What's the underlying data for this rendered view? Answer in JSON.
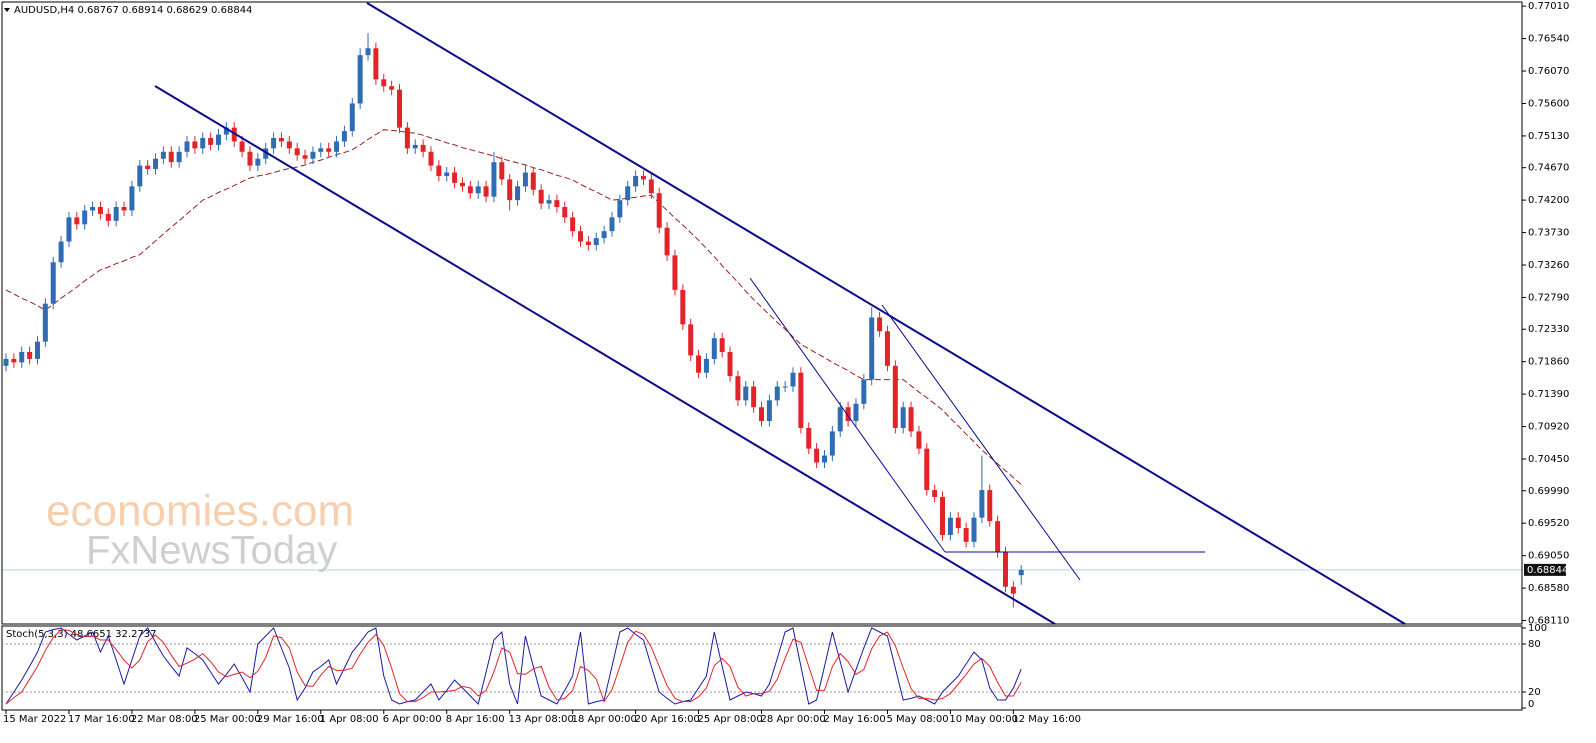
{
  "chart_data": [
    {
      "type": "candlestick",
      "title": "AUDUSD,H4  0.68767 0.68914 0.68629 0.68844",
      "watermark": [
        "economies.com",
        "FxNewsToday"
      ],
      "categories": [
        "15 Mar 2022",
        null,
        null,
        null,
        null,
        null,
        null,
        null,
        "17 Mar 16:00",
        null,
        null,
        null,
        null,
        null,
        null,
        null,
        "22 Mar 08:00",
        null,
        null,
        null,
        null,
        null,
        null,
        null,
        "25 Mar 00:00",
        null,
        null,
        null,
        null,
        null,
        null,
        null,
        "29 Mar 16:00",
        null,
        null,
        null,
        null,
        null,
        null,
        null,
        "1 Apr 08:00",
        null,
        null,
        null,
        null,
        null,
        null,
        null,
        "6 Apr 00:00",
        null,
        null,
        null,
        null,
        null,
        null,
        null,
        "8 Apr 16:00",
        null,
        null,
        null,
        null,
        null,
        null,
        null,
        "13 Apr 08:00",
        null,
        null,
        null,
        null,
        null,
        null,
        null,
        "18 Apr 00:00",
        null,
        null,
        null,
        null,
        null,
        null,
        null,
        "20 Apr 16:00",
        null,
        null,
        null,
        null,
        null,
        null,
        null,
        "25 Apr 08:00",
        null,
        null,
        null,
        null,
        null,
        null,
        null,
        "28 Apr 00:00",
        null,
        null,
        null,
        null,
        null,
        null,
        null,
        "2 May 16:00",
        null,
        null,
        null,
        null,
        null,
        null,
        null,
        "5 May 08:00",
        null,
        null,
        null,
        null,
        null,
        null,
        null,
        "10 May 00:00",
        null,
        null,
        null,
        null,
        null,
        null,
        null,
        "12 May 16:00",
        null
      ],
      "open": [
        0.718,
        0.719,
        0.7185,
        0.72,
        0.719,
        0.7215,
        0.727,
        0.733,
        0.736,
        0.7395,
        0.7385,
        0.7405,
        0.741,
        0.74,
        0.739,
        0.741,
        0.7405,
        0.744,
        0.747,
        0.7465,
        0.748,
        0.749,
        0.7475,
        0.749,
        0.7505,
        0.7495,
        0.751,
        0.75,
        0.7515,
        0.7525,
        0.7505,
        0.749,
        0.747,
        0.748,
        0.7495,
        0.751,
        0.7505,
        0.7495,
        0.7485,
        0.748,
        0.749,
        0.7495,
        0.749,
        0.7505,
        0.752,
        0.756,
        0.763,
        0.764,
        0.7595,
        0.7585,
        0.758,
        0.7525,
        0.7495,
        0.75,
        0.749,
        0.747,
        0.7455,
        0.746,
        0.7445,
        0.744,
        0.743,
        0.744,
        0.7425,
        0.7475,
        0.745,
        0.742,
        0.744,
        0.746,
        0.7435,
        0.7415,
        0.742,
        0.741,
        0.7395,
        0.7375,
        0.736,
        0.7355,
        0.7365,
        0.7375,
        0.7395,
        0.742,
        0.744,
        0.7455,
        0.745,
        0.743,
        0.738,
        0.734,
        0.729,
        0.724,
        0.7195,
        0.717,
        0.719,
        0.722,
        0.72,
        0.7165,
        0.713,
        0.715,
        0.712,
        0.71,
        0.713,
        0.715,
        0.715,
        0.717,
        0.709,
        0.706,
        0.704,
        0.705,
        0.7085,
        0.712,
        0.71,
        0.7125,
        0.716,
        0.725,
        0.723,
        0.718,
        0.709,
        0.712,
        0.7085,
        0.706,
        0.7,
        0.699,
        0.6935,
        0.696,
        0.6945,
        0.6925,
        0.696,
        0.7,
        0.6955,
        0.691,
        0.686,
        0.68767
      ],
      "high": [
        0.7198,
        0.7198,
        0.7208,
        0.7208,
        0.7223,
        0.7278,
        0.7338,
        0.7368,
        0.7403,
        0.7403,
        0.7413,
        0.7418,
        0.7418,
        0.7408,
        0.7418,
        0.7418,
        0.7448,
        0.7478,
        0.7478,
        0.7488,
        0.7498,
        0.7498,
        0.7498,
        0.7513,
        0.7513,
        0.7518,
        0.7518,
        0.7523,
        0.7533,
        0.7533,
        0.7513,
        0.7498,
        0.7488,
        0.7503,
        0.7518,
        0.7518,
        0.7513,
        0.7503,
        0.7493,
        0.7498,
        0.7503,
        0.7503,
        0.7513,
        0.7528,
        0.7568,
        0.764,
        0.7662,
        0.7648,
        0.7603,
        0.7593,
        0.7588,
        0.7533,
        0.7508,
        0.7508,
        0.7498,
        0.7478,
        0.7468,
        0.7468,
        0.7453,
        0.7448,
        0.7448,
        0.7448,
        0.749,
        0.7483,
        0.7458,
        0.7448,
        0.747,
        0.7468,
        0.7443,
        0.7428,
        0.7428,
        0.7418,
        0.7403,
        0.7383,
        0.7368,
        0.7373,
        0.7383,
        0.7403,
        0.7428,
        0.7448,
        0.7463,
        0.7463,
        0.7458,
        0.7438,
        0.7388,
        0.7348,
        0.7298,
        0.7248,
        0.7203,
        0.7198,
        0.7228,
        0.7228,
        0.7208,
        0.7173,
        0.7158,
        0.7158,
        0.7128,
        0.7138,
        0.7158,
        0.7158,
        0.7178,
        0.7178,
        0.7098,
        0.7068,
        0.7058,
        0.7093,
        0.7128,
        0.7128,
        0.7133,
        0.7168,
        0.7265,
        0.7258,
        0.7238,
        0.7188,
        0.7128,
        0.7128,
        0.7093,
        0.7068,
        0.7008,
        0.6998,
        0.6968,
        0.6968,
        0.6953,
        0.6968,
        0.705,
        0.7008,
        0.6963,
        0.6918,
        0.6868,
        0.68914
      ],
      "low": [
        0.7172,
        0.7177,
        0.7177,
        0.7182,
        0.7182,
        0.7207,
        0.7262,
        0.7322,
        0.7352,
        0.7377,
        0.7377,
        0.7397,
        0.7392,
        0.7382,
        0.7382,
        0.7397,
        0.7397,
        0.7432,
        0.7457,
        0.7457,
        0.7472,
        0.7467,
        0.7467,
        0.7482,
        0.7487,
        0.7487,
        0.7492,
        0.7492,
        0.7507,
        0.7497,
        0.7482,
        0.7462,
        0.7462,
        0.7472,
        0.7487,
        0.7497,
        0.7487,
        0.7477,
        0.7472,
        0.7472,
        0.7482,
        0.7482,
        0.7482,
        0.7497,
        0.7512,
        0.7552,
        0.7622,
        0.7587,
        0.7577,
        0.7572,
        0.7517,
        0.7487,
        0.7487,
        0.7482,
        0.7462,
        0.7447,
        0.7447,
        0.7437,
        0.7432,
        0.7422,
        0.7422,
        0.7417,
        0.7417,
        0.7442,
        0.7405,
        0.7412,
        0.7432,
        0.7427,
        0.7407,
        0.7407,
        0.7402,
        0.7387,
        0.7367,
        0.7352,
        0.7347,
        0.7347,
        0.7357,
        0.7367,
        0.7387,
        0.7412,
        0.7432,
        0.7442,
        0.7422,
        0.7372,
        0.7332,
        0.7282,
        0.7232,
        0.7187,
        0.7162,
        0.7162,
        0.7182,
        0.7192,
        0.7157,
        0.7122,
        0.7122,
        0.7112,
        0.7092,
        0.7092,
        0.7122,
        0.7142,
        0.7142,
        0.7082,
        0.7052,
        0.7032,
        0.7032,
        0.7042,
        0.7077,
        0.7092,
        0.7092,
        0.7117,
        0.7152,
        0.7222,
        0.7172,
        0.7082,
        0.7082,
        0.7077,
        0.7052,
        0.6992,
        0.6982,
        0.6927,
        0.6927,
        0.6937,
        0.6917,
        0.6917,
        0.6952,
        0.6947,
        0.6902,
        0.6852,
        0.683,
        0.68629
      ],
      "close": [
        0.719,
        0.7185,
        0.72,
        0.719,
        0.7215,
        0.727,
        0.733,
        0.736,
        0.7395,
        0.7385,
        0.7405,
        0.741,
        0.74,
        0.739,
        0.741,
        0.7405,
        0.744,
        0.747,
        0.7465,
        0.748,
        0.749,
        0.7475,
        0.749,
        0.7505,
        0.7495,
        0.751,
        0.75,
        0.7515,
        0.7525,
        0.7505,
        0.749,
        0.747,
        0.748,
        0.7495,
        0.751,
        0.7505,
        0.7495,
        0.7485,
        0.748,
        0.749,
        0.7495,
        0.749,
        0.7505,
        0.752,
        0.756,
        0.763,
        0.764,
        0.7595,
        0.7585,
        0.758,
        0.7525,
        0.7495,
        0.75,
        0.749,
        0.747,
        0.7455,
        0.746,
        0.7445,
        0.744,
        0.743,
        0.744,
        0.7425,
        0.7475,
        0.745,
        0.742,
        0.744,
        0.746,
        0.7435,
        0.7415,
        0.742,
        0.741,
        0.7395,
        0.7375,
        0.736,
        0.7355,
        0.7365,
        0.7375,
        0.7395,
        0.742,
        0.744,
        0.7455,
        0.745,
        0.743,
        0.738,
        0.734,
        0.729,
        0.724,
        0.7195,
        0.717,
        0.719,
        0.722,
        0.72,
        0.7165,
        0.713,
        0.715,
        0.712,
        0.71,
        0.713,
        0.715,
        0.715,
        0.717,
        0.709,
        0.706,
        0.704,
        0.705,
        0.7085,
        0.712,
        0.71,
        0.7125,
        0.716,
        0.725,
        0.723,
        0.718,
        0.709,
        0.712,
        0.7085,
        0.706,
        0.7,
        0.699,
        0.6935,
        0.696,
        0.6945,
        0.6925,
        0.696,
        0.7,
        0.6955,
        0.691,
        0.686,
        0.685,
        0.68844
      ],
      "up_color": "#2f6cb3",
      "down_color": "#e3232a",
      "ma": {
        "color": "#9b2020",
        "dashed": true,
        "values": [
          0.729,
          0.7284,
          0.7278,
          0.7273,
          0.7267,
          0.7261,
          0.7269,
          0.7278,
          0.7286,
          0.7294,
          0.7303,
          0.7311,
          0.7319,
          0.7323,
          0.7328,
          0.7332,
          0.7337,
          0.7341,
          0.7351,
          0.7361,
          0.7371,
          0.7381,
          0.739,
          0.74,
          0.741,
          0.742,
          0.7425,
          0.7431,
          0.7436,
          0.7441,
          0.7447,
          0.7452,
          0.7455,
          0.7457,
          0.746,
          0.7463,
          0.7466,
          0.7468,
          0.7471,
          0.7475,
          0.7478,
          0.7482,
          0.7486,
          0.7489,
          0.7493,
          0.75,
          0.7508,
          0.7515,
          0.7522,
          0.7521,
          0.752,
          0.7518,
          0.7517,
          0.7514,
          0.751,
          0.7507,
          0.7503,
          0.75,
          0.7496,
          0.7493,
          0.749,
          0.7487,
          0.7484,
          0.748,
          0.7477,
          0.7474,
          0.7471,
          0.7467,
          0.7464,
          0.746,
          0.7456,
          0.7453,
          0.7449,
          0.7443,
          0.7437,
          0.7432,
          0.7426,
          0.742,
          0.7421,
          0.7423,
          0.7424,
          0.7426,
          0.7427,
          0.7416,
          0.7405,
          0.7394,
          0.7384,
          0.7373,
          0.7362,
          0.735,
          0.7338,
          0.7325,
          0.7313,
          0.7301,
          0.7288,
          0.7276,
          0.7265,
          0.7254,
          0.7243,
          0.7233,
          0.7222,
          0.7211,
          0.7205,
          0.7198,
          0.7192,
          0.7185,
          0.7179,
          0.7173,
          0.7166,
          0.716,
          0.716,
          0.716,
          0.716,
          0.716,
          0.716,
          0.7151,
          0.7142,
          0.7134,
          0.7125,
          0.7116,
          0.7104,
          0.7093,
          0.7081,
          0.707,
          0.7058,
          0.7048,
          0.7038,
          0.7028,
          0.7018,
          0.7008
        ]
      },
      "last_price": 0.68844,
      "ylim": [
        0.6806,
        0.7707
      ],
      "yticks": [
        {
          "value": 0.7701,
          "label": "0.77010"
        },
        {
          "value": 0.7654,
          "label": "0.76540"
        },
        {
          "value": 0.7607,
          "label": "0.76070"
        },
        {
          "value": 0.756,
          "label": "0.75600"
        },
        {
          "value": 0.7513,
          "label": "0.75130"
        },
        {
          "value": 0.7467,
          "label": "0.74670"
        },
        {
          "value": 0.742,
          "label": "0.74200"
        },
        {
          "value": 0.7373,
          "label": "0.73730"
        },
        {
          "value": 0.7326,
          "label": "0.73260"
        },
        {
          "value": 0.7279,
          "label": "0.72790"
        },
        {
          "value": 0.7233,
          "label": "0.72330"
        },
        {
          "value": 0.7186,
          "label": "0.71860"
        },
        {
          "value": 0.7139,
          "label": "0.71390"
        },
        {
          "value": 0.7092,
          "label": "0.70920"
        },
        {
          "value": 0.7045,
          "label": "0.70450"
        },
        {
          "value": 0.6999,
          "label": "0.69990"
        },
        {
          "value": 0.6952,
          "label": "0.69520"
        },
        {
          "value": 0.6905,
          "label": "0.69050"
        },
        {
          "value": 0.6858,
          "label": "0.68580"
        },
        {
          "value": 0.6811,
          "label": "0.68110"
        }
      ]
    },
    {
      "type": "line",
      "title": "Stoch(5,3,3) 48.6651 32.2737",
      "series": [
        {
          "color": "#1a1aa6",
          "values": [
            5,
            20,
            35,
            52,
            70,
            95,
            98,
            100,
            92,
            85,
            90,
            95,
            70,
            90,
            60,
            30,
            60,
            90,
            100,
            82,
            65,
            52,
            40,
            75,
            68,
            60,
            45,
            30,
            42,
            55,
            38,
            20,
            80,
            90,
            100,
            75,
            50,
            10,
            25,
            45,
            52,
            60,
            30,
            50,
            70,
            82,
            95,
            100,
            40,
            10,
            5,
            8,
            10,
            20,
            30,
            10,
            22,
            35,
            25,
            15,
            5,
            45,
            85,
            95,
            30,
            5,
            90,
            52,
            15,
            10,
            5,
            22,
            40,
            95,
            5,
            8,
            10,
            52,
            95,
            100,
            92,
            85,
            52,
            20,
            12,
            5,
            8,
            10,
            25,
            40,
            95,
            52,
            10,
            15,
            20,
            18,
            15,
            30,
            62,
            95,
            100,
            52,
            5,
            10,
            52,
            95,
            58,
            20,
            48,
            75,
            100,
            95,
            90,
            50,
            10,
            12,
            15,
            10,
            5,
            20,
            30,
            40,
            55,
            70,
            60,
            25,
            10,
            10,
            25,
            48.6651
          ]
        },
        {
          "color": "#e3232a",
          "values": [
            5,
            13,
            20,
            36,
            52,
            72,
            88,
            98,
            97,
            92,
            89,
            90,
            85,
            85,
            73,
            60,
            50,
            60,
            83,
            91,
            82,
            66,
            52,
            56,
            61,
            68,
            58,
            45,
            39,
            42,
            45,
            38,
            46,
            63,
            90,
            88,
            75,
            45,
            28,
            27,
            41,
            52,
            47,
            47,
            50,
            67,
            82,
            92,
            78,
            50,
            18,
            8,
            8,
            13,
            20,
            20,
            21,
            22,
            27,
            25,
            15,
            22,
            45,
            75,
            70,
            43,
            42,
            49,
            52,
            26,
            10,
            12,
            22,
            52,
            47,
            36,
            8,
            23,
            52,
            82,
            96,
            92,
            76,
            52,
            28,
            12,
            8,
            8,
            14,
            25,
            53,
            62,
            52,
            26,
            15,
            18,
            18,
            21,
            36,
            62,
            86,
            82,
            52,
            22,
            22,
            52,
            68,
            58,
            42,
            48,
            74,
            90,
            95,
            78,
            50,
            24,
            12,
            12,
            10,
            12,
            18,
            30,
            42,
            55,
            62,
            52,
            32,
            15,
            15,
            32.2737
          ]
        }
      ],
      "ylim": [
        0,
        100
      ],
      "yticks": [
        100,
        80,
        20,
        0
      ]
    }
  ]
}
